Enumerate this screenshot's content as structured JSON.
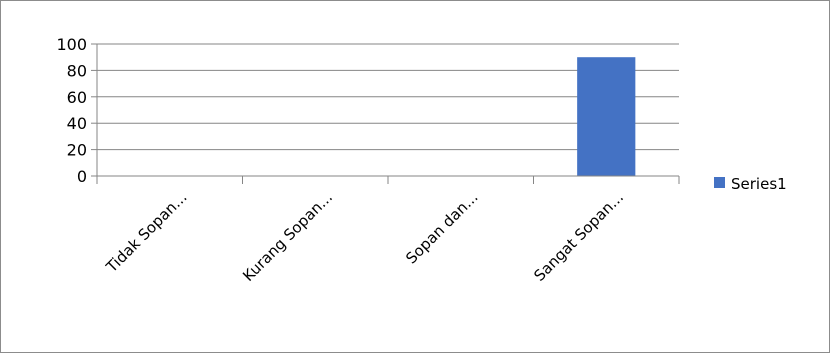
{
  "chart_data": {
    "type": "bar",
    "categories": [
      "Tidak Sopan...",
      "Kurang Sopan...",
      "Sopan dan...",
      "Sangat Sopan..."
    ],
    "series": [
      {
        "name": "Series1",
        "values": [
          0,
          0,
          0,
          90
        ],
        "color": "#4472c4"
      }
    ],
    "y_ticks": [
      "100",
      "80",
      "60",
      "40",
      "20",
      "0"
    ],
    "ylim": [
      0,
      100
    ],
    "grid": true,
    "legend_position": "right"
  }
}
